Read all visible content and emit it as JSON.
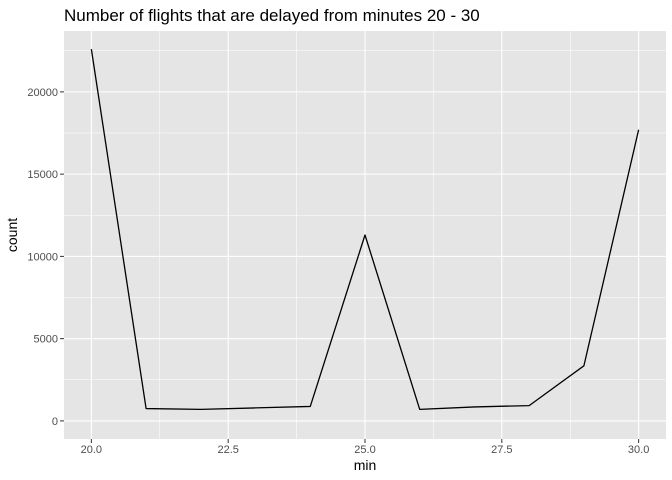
{
  "chart_data": {
    "type": "line",
    "title": "Number of flights that are delayed from minutes 20 - 30",
    "xlabel": "min",
    "ylabel": "count",
    "x": [
      20,
      21,
      22,
      23,
      24,
      25,
      26,
      27,
      28,
      29,
      30
    ],
    "series": [
      {
        "values": [
          22600,
          750,
          700,
          790,
          880,
          11300,
          700,
          850,
          930,
          3350,
          17700
        ]
      }
    ],
    "xlim": [
      19.5,
      30.5
    ],
    "ylim": [
      -1100,
      23700
    ],
    "x_ticks": [
      20,
      22.5,
      25,
      27.5,
      30
    ],
    "x_tick_labels": [
      "20.0",
      "22.5",
      "25.0",
      "27.5",
      "30.0"
    ],
    "y_ticks": [
      0,
      5000,
      10000,
      15000,
      20000
    ],
    "y_tick_labels": [
      "0",
      "5000",
      "10000",
      "15000",
      "20000"
    ],
    "grid": true,
    "colors": {
      "panel": "#e5e5e5",
      "grid_major": "#ffffff",
      "line": "#000000",
      "tick": "#4d4d4d"
    }
  }
}
